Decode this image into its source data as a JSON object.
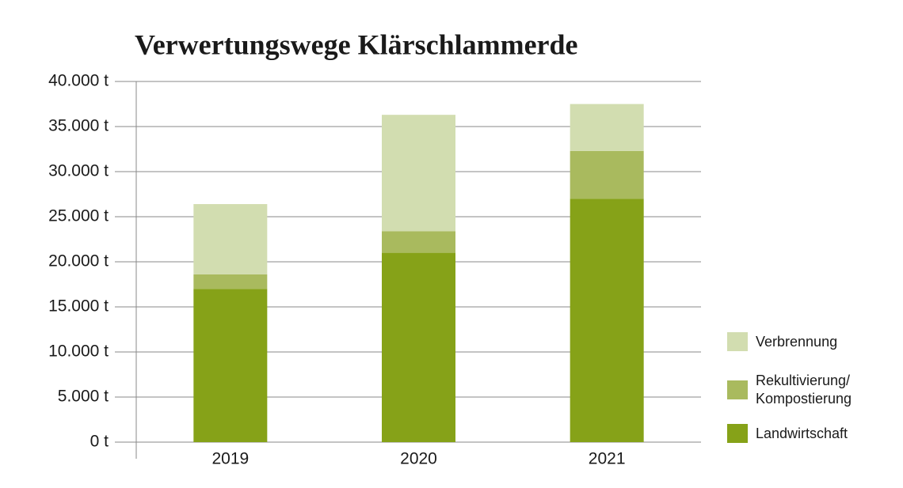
{
  "chart_data": {
    "type": "stacked_bar",
    "title": "Verwertungswege Klärschlammerde",
    "categories": [
      "2019",
      "2020",
      "2021"
    ],
    "series": [
      {
        "name": "Landwirtschaft",
        "color": "#86a218",
        "values": [
          17000,
          21000,
          27000
        ]
      },
      {
        "name": "Rekultivierung/ Kompostierung",
        "color": "#a9ba5e",
        "values": [
          1600,
          2400,
          5300
        ]
      },
      {
        "name": "Verbrennung",
        "color": "#d2ddb0",
        "values": [
          7800,
          12900,
          5200
        ]
      }
    ],
    "ylim": [
      0,
      40000
    ],
    "yticks": [
      {
        "value": 0,
        "label": "0 t"
      },
      {
        "value": 5000,
        "label": "5.000 t"
      },
      {
        "value": 10000,
        "label": "10.000 t"
      },
      {
        "value": 15000,
        "label": "15.000 t"
      },
      {
        "value": 20000,
        "label": "20.000 t"
      },
      {
        "value": 25000,
        "label": "25.000 t"
      },
      {
        "value": 30000,
        "label": "30.000 t"
      },
      {
        "value": 35000,
        "label": "35.000 t"
      },
      {
        "value": 40000,
        "label": "40.000 t"
      }
    ],
    "grid": true,
    "legend": "right"
  }
}
